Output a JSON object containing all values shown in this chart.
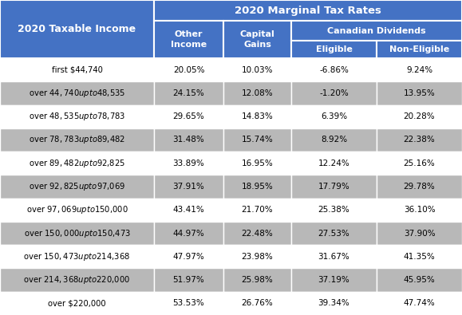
{
  "title": "2020 Marginal Tax Rates",
  "header_bg": "#4472C4",
  "row_bg_white": "#FFFFFF",
  "row_bg_gray": "#B8B8B8",
  "border_color": "#FFFFFF",
  "income_brackets": [
    "first $44,740",
    "over $44,740 up to $48,535",
    "over $48,535 up to $78,783",
    "over $78,783 up to $89,482",
    "over $89,482 up to $92,825",
    "over $92,825 up to $97,069",
    "over $97,069 up to $150,000",
    "over $150,000 up to $150,473",
    "over $150,473 up to $214,368",
    "over $214,368 up to $220,000",
    "over $220,000"
  ],
  "other_income": [
    "20.05%",
    "24.15%",
    "29.65%",
    "31.48%",
    "33.89%",
    "37.91%",
    "43.41%",
    "44.97%",
    "47.97%",
    "51.97%",
    "53.53%"
  ],
  "capital_gains": [
    "10.03%",
    "12.08%",
    "14.83%",
    "15.74%",
    "16.95%",
    "18.95%",
    "21.70%",
    "22.48%",
    "23.98%",
    "25.98%",
    "26.76%"
  ],
  "eligible": [
    "-6.86%",
    "-1.20%",
    "6.39%",
    "8.92%",
    "12.24%",
    "17.79%",
    "25.38%",
    "27.53%",
    "31.67%",
    "37.19%",
    "39.34%"
  ],
  "non_eligible": [
    "9.24%",
    "13.95%",
    "20.28%",
    "22.38%",
    "25.16%",
    "29.78%",
    "36.10%",
    "37.90%",
    "41.35%",
    "45.95%",
    "47.74%"
  ],
  "col_label_income": "2020 Taxable Income",
  "col_label_other": "Other\nIncome",
  "col_label_gains": "Capital\nGains",
  "col_label_dividends": "Canadian Dividends",
  "col_label_eligible": "Eligible",
  "col_label_noneligible": "Non-Eligible",
  "figw": 5.79,
  "figh": 3.95,
  "dpi": 100
}
